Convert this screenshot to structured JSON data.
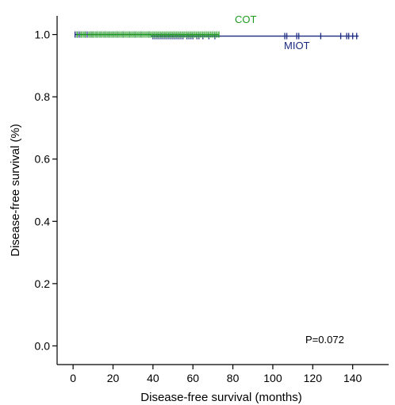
{
  "chart_data": {
    "type": "line",
    "xlabel": "Disease-free survival (months)",
    "ylabel": "Disease-free survival (%)",
    "xlim": [
      -8,
      158
    ],
    "ylim": [
      -0.06,
      1.06
    ],
    "xticks": [
      0,
      20,
      40,
      60,
      80,
      100,
      120,
      140
    ],
    "yticks": [
      0.0,
      0.2,
      0.4,
      0.6,
      0.8,
      1.0
    ],
    "ytick_labels": [
      "0.0",
      "0.2",
      "0.4",
      "0.6",
      "0.8",
      "1.0"
    ],
    "grid": false,
    "annotation": "P=0.072",
    "series": [
      {
        "name": "MIOT",
        "color": "#1a2a80",
        "steps": [
          [
            1,
            1.0
          ],
          [
            39,
            0.995
          ],
          [
            143,
            0.995
          ]
        ],
        "censor_x": [
          1,
          2,
          3,
          4,
          6,
          7,
          9,
          10,
          12,
          14,
          16,
          18,
          20,
          22,
          25,
          28,
          31,
          34,
          38,
          40,
          41,
          42,
          43,
          44,
          45,
          46,
          47,
          48,
          49,
          50,
          51,
          52,
          53,
          54,
          55,
          57,
          58,
          59,
          60,
          62,
          63,
          65,
          68,
          71,
          106,
          107,
          112,
          113,
          124,
          134,
          137,
          138,
          140,
          142
        ]
      },
      {
        "name": "COT",
        "color": "#1f9a1f",
        "steps": [
          [
            2,
            1.0
          ],
          [
            73,
            1.0
          ]
        ],
        "censor_x": [
          2,
          4,
          5,
          6,
          8,
          9,
          10,
          11,
          12,
          13,
          14,
          15,
          16,
          17,
          18,
          19,
          20,
          21,
          22,
          23,
          24,
          25,
          26,
          27,
          28,
          29,
          30,
          31,
          32,
          33,
          34,
          35,
          36,
          37,
          38,
          39,
          40,
          41,
          42,
          43,
          44,
          45,
          46,
          47,
          48,
          49,
          50,
          51,
          52,
          53,
          54,
          55,
          56,
          57,
          58,
          59,
          60,
          61,
          62,
          63,
          64,
          65,
          66,
          67,
          68,
          69,
          70,
          71,
          72,
          73
        ]
      }
    ]
  }
}
